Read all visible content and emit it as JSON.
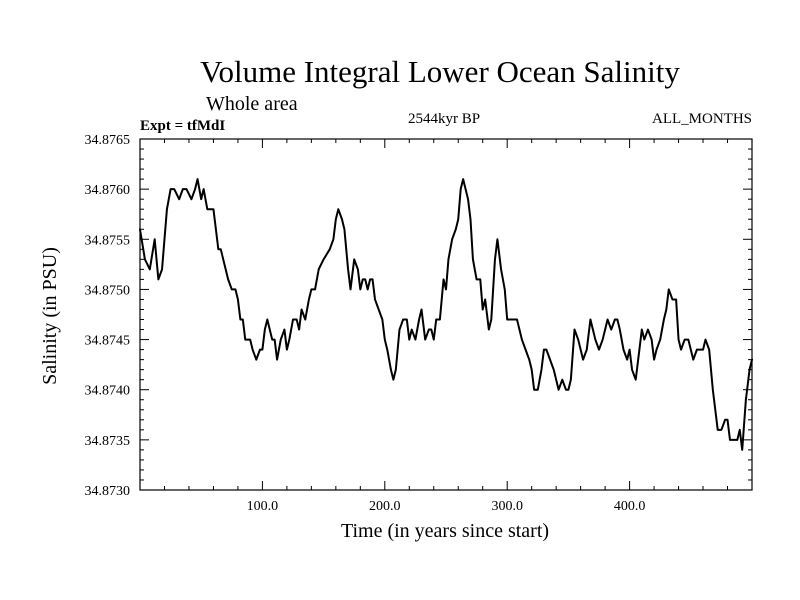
{
  "chart_data": {
    "type": "line",
    "title": "Volume Integral Lower Ocean Salinity",
    "subtitle": "Whole area",
    "experiment_label": "Expt = tfMdI",
    "period_label": "2544kyr BP",
    "months_label": "ALL_MONTHS",
    "xlabel": "Time (in years since start)",
    "ylabel": "Salinity (in PSU)",
    "xlim": [
      0,
      500
    ],
    "ylim": [
      34.873,
      34.8765
    ],
    "x_ticks": [
      {
        "value": 100,
        "label": "100.0"
      },
      {
        "value": 200,
        "label": "200.0"
      },
      {
        "value": 300,
        "label": "300.0"
      },
      {
        "value": 400,
        "label": "400.0"
      }
    ],
    "y_ticks": [
      {
        "value": 34.873,
        "label": "34.8730"
      },
      {
        "value": 34.8735,
        "label": "34.8735"
      },
      {
        "value": 34.874,
        "label": "34.8740"
      },
      {
        "value": 34.8745,
        "label": "34.8745"
      },
      {
        "value": 34.875,
        "label": "34.8750"
      },
      {
        "value": 34.8755,
        "label": "34.8755"
      },
      {
        "value": 34.876,
        "label": "34.8760"
      },
      {
        "value": 34.8765,
        "label": "34.8765"
      }
    ],
    "series": [
      {
        "name": "Salinity",
        "x": [
          0,
          4,
          8,
          12,
          15,
          18,
          22,
          25,
          28,
          32,
          35,
          38,
          42,
          45,
          47,
          50,
          52,
          55,
          58,
          60,
          62,
          64,
          66,
          68,
          70,
          72,
          75,
          78,
          80,
          82,
          84,
          86,
          88,
          90,
          92,
          95,
          98,
          100,
          102,
          104,
          106,
          108,
          110,
          112,
          115,
          118,
          120,
          122,
          125,
          128,
          130,
          132,
          135,
          138,
          140,
          143,
          146,
          150,
          155,
          158,
          160,
          162,
          165,
          167,
          170,
          172,
          175,
          178,
          180,
          182,
          184,
          186,
          188,
          190,
          192,
          195,
          198,
          200,
          202,
          205,
          207,
          209,
          212,
          215,
          218,
          220,
          222,
          225,
          228,
          230,
          233,
          236,
          238,
          240,
          242,
          245,
          248,
          250,
          252,
          255,
          258,
          260,
          262,
          264,
          266,
          268,
          270,
          272,
          275,
          278,
          280,
          282,
          285,
          287,
          290,
          292,
          295,
          298,
          300,
          302,
          305,
          308,
          310,
          312,
          315,
          318,
          320,
          322,
          325,
          328,
          330,
          332,
          335,
          338,
          340,
          342,
          345,
          348,
          350,
          352,
          355,
          358,
          360,
          362,
          365,
          368,
          370,
          372,
          375,
          378,
          380,
          382,
          385,
          388,
          390,
          392,
          395,
          398,
          400,
          402,
          405,
          408,
          410,
          412,
          415,
          418,
          420,
          422,
          425,
          428,
          430,
          432,
          435,
          438,
          440,
          442,
          445,
          448,
          450,
          452,
          455,
          458,
          460,
          462,
          465,
          468,
          470,
          472,
          475,
          478,
          480,
          482,
          485,
          488,
          490,
          492,
          495,
          498,
          500
        ],
        "values": [
          34.8756,
          34.8753,
          34.8752,
          34.8755,
          34.8751,
          34.8752,
          34.8758,
          34.876,
          34.876,
          34.8759,
          34.876,
          34.876,
          34.8759,
          34.876,
          34.8761,
          34.8759,
          34.876,
          34.8758,
          34.8758,
          34.8758,
          34.8756,
          34.8754,
          34.8754,
          34.8753,
          34.8752,
          34.8751,
          34.875,
          34.875,
          34.8749,
          34.8747,
          34.8747,
          34.8745,
          34.8745,
          34.8745,
          34.8744,
          34.8743,
          34.8744,
          34.8744,
          34.8746,
          34.8747,
          34.8746,
          34.8745,
          34.8745,
          34.8743,
          34.8745,
          34.8746,
          34.8744,
          34.8745,
          34.8747,
          34.8747,
          34.8746,
          34.8748,
          34.8747,
          34.8749,
          34.875,
          34.875,
          34.8752,
          34.8753,
          34.8754,
          34.8755,
          34.8757,
          34.8758,
          34.8757,
          34.8756,
          34.8752,
          34.875,
          34.8753,
          34.8752,
          34.875,
          34.8751,
          34.8751,
          34.875,
          34.8751,
          34.8751,
          34.8749,
          34.8748,
          34.8747,
          34.8745,
          34.8744,
          34.8742,
          34.8741,
          34.8742,
          34.8746,
          34.8747,
          34.8747,
          34.8745,
          34.8746,
          34.8745,
          34.8747,
          34.8748,
          34.8745,
          34.8746,
          34.8746,
          34.8745,
          34.8747,
          34.8747,
          34.8751,
          34.875,
          34.8753,
          34.8755,
          34.8756,
          34.8757,
          34.876,
          34.8761,
          34.876,
          34.8759,
          34.8757,
          34.8753,
          34.8751,
          34.8751,
          34.8748,
          34.8749,
          34.8746,
          34.8747,
          34.8753,
          34.8755,
          34.8752,
          34.875,
          34.8747,
          34.8747,
          34.8747,
          34.8747,
          34.8746,
          34.8745,
          34.8744,
          34.8743,
          34.8742,
          34.874,
          34.874,
          34.8742,
          34.8744,
          34.8744,
          34.8743,
          34.8742,
          34.8741,
          34.874,
          34.8741,
          34.874,
          34.874,
          34.8741,
          34.8746,
          34.8745,
          34.8744,
          34.8743,
          34.8744,
          34.8747,
          34.8746,
          34.8745,
          34.8744,
          34.8745,
          34.8746,
          34.8747,
          34.8746,
          34.8747,
          34.8747,
          34.8746,
          34.8744,
          34.8743,
          34.8744,
          34.8742,
          34.8741,
          34.8744,
          34.8746,
          34.8745,
          34.8746,
          34.8745,
          34.8743,
          34.8744,
          34.8745,
          34.8747,
          34.8748,
          34.875,
          34.8749,
          34.8749,
          34.8745,
          34.8744,
          34.8745,
          34.8745,
          34.8744,
          34.8743,
          34.8744,
          34.8744,
          34.8744,
          34.8745,
          34.8744,
          34.874,
          34.8738,
          34.8736,
          34.8736,
          34.8737,
          34.8737,
          34.8735,
          34.8735,
          34.8735,
          34.8736,
          34.8734,
          34.8739,
          34.8742,
          34.8743
        ]
      }
    ]
  }
}
